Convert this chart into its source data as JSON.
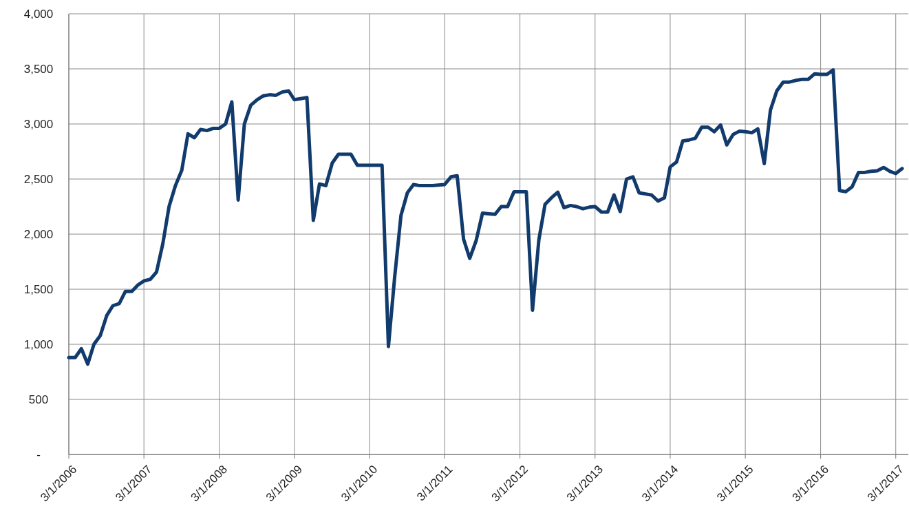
{
  "chart_data": {
    "type": "line",
    "x": [
      "2006-03",
      "2006-04",
      "2006-05",
      "2006-06",
      "2006-07",
      "2006-08",
      "2006-09",
      "2006-10",
      "2006-11",
      "2006-12",
      "2007-01",
      "2007-02",
      "2007-03",
      "2007-04",
      "2007-05",
      "2007-06",
      "2007-07",
      "2007-08",
      "2007-09",
      "2007-10",
      "2007-11",
      "2007-12",
      "2008-01",
      "2008-02",
      "2008-03",
      "2008-04",
      "2008-05",
      "2008-06",
      "2008-07",
      "2008-08",
      "2008-09",
      "2008-10",
      "2008-11",
      "2008-12",
      "2009-01",
      "2009-02",
      "2009-03",
      "2009-04",
      "2009-05",
      "2009-06",
      "2009-07",
      "2009-08",
      "2009-09",
      "2009-10",
      "2009-11",
      "2009-12",
      "2010-01",
      "2010-02",
      "2010-03",
      "2010-04",
      "2010-05",
      "2010-06",
      "2010-07",
      "2010-08",
      "2010-09",
      "2010-10",
      "2010-11",
      "2010-12",
      "2011-01",
      "2011-02",
      "2011-03",
      "2011-04",
      "2011-05",
      "2011-06",
      "2011-07",
      "2011-08",
      "2011-09",
      "2011-10",
      "2011-11",
      "2011-12",
      "2012-01",
      "2012-02",
      "2012-03",
      "2012-04",
      "2012-05",
      "2012-06",
      "2012-07",
      "2012-08",
      "2012-09",
      "2012-10",
      "2012-11",
      "2012-12",
      "2013-01",
      "2013-02",
      "2013-03",
      "2013-04",
      "2013-05",
      "2013-06",
      "2013-07",
      "2013-08",
      "2013-09",
      "2013-10",
      "2013-11",
      "2013-12",
      "2014-01",
      "2014-02",
      "2014-03",
      "2014-04",
      "2014-05",
      "2014-06",
      "2014-07",
      "2014-08",
      "2014-09",
      "2014-10",
      "2014-11",
      "2014-12",
      "2015-01",
      "2015-02",
      "2015-03",
      "2015-04",
      "2015-05",
      "2015-06",
      "2015-07",
      "2015-08",
      "2015-09",
      "2015-10",
      "2015-11",
      "2015-12",
      "2016-01",
      "2016-02",
      "2016-03",
      "2016-04",
      "2016-05",
      "2016-06",
      "2016-07",
      "2016-08",
      "2016-09",
      "2016-10",
      "2016-11",
      "2016-12",
      "2017-01",
      "2017-02",
      "2017-03",
      "2017-04"
    ],
    "series": [
      {
        "color": "#123b6d",
        "values": [
          880,
          880,
          960,
          820,
          1000,
          1080,
          1260,
          1350,
          1370,
          1480,
          1480,
          1540,
          1575,
          1590,
          1655,
          1915,
          2250,
          2440,
          2580,
          2910,
          2875,
          2950,
          2940,
          2960,
          2960,
          3000,
          3200,
          2310,
          3000,
          3170,
          3220,
          3255,
          3265,
          3260,
          3290,
          3300,
          3220,
          3230,
          3240,
          2125,
          2455,
          2440,
          2645,
          2725,
          2725,
          2725,
          2625,
          2625,
          2625,
          2625,
          2625,
          980,
          1605,
          2170,
          2375,
          2450,
          2440,
          2440,
          2440,
          2445,
          2450,
          2520,
          2530,
          1955,
          1780,
          1940,
          2190,
          2185,
          2180,
          2250,
          2250,
          2385,
          2385,
          2385,
          1310,
          1950,
          2270,
          2330,
          2380,
          2240,
          2260,
          2250,
          2230,
          2245,
          2250,
          2200,
          2200,
          2355,
          2205,
          2500,
          2520,
          2375,
          2365,
          2355,
          2300,
          2330,
          2610,
          2655,
          2845,
          2855,
          2870,
          2970,
          2970,
          2930,
          2990,
          2810,
          2905,
          2935,
          2930,
          2920,
          2955,
          2640,
          3125,
          3300,
          3380,
          3380,
          3395,
          3405,
          3405,
          3455,
          3450,
          3450,
          3490,
          2395,
          2385,
          2430,
          2560,
          2560,
          2570,
          2575,
          2605,
          2570,
          2550,
          2595
        ]
      }
    ],
    "xlim": [
      "2006-03-01",
      "2017-05-01"
    ],
    "xticks": [
      {
        "value": "2006-03-01",
        "label": "3/1/2006"
      },
      {
        "value": "2007-03-01",
        "label": "3/1/2007"
      },
      {
        "value": "2008-03-01",
        "label": "3/1/2008"
      },
      {
        "value": "2009-03-01",
        "label": "3/1/2009"
      },
      {
        "value": "2010-03-01",
        "label": "3/1/2010"
      },
      {
        "value": "2011-03-01",
        "label": "3/1/2011"
      },
      {
        "value": "2012-03-01",
        "label": "3/1/2012"
      },
      {
        "value": "2013-03-01",
        "label": "3/1/2013"
      },
      {
        "value": "2014-03-01",
        "label": "3/1/2014"
      },
      {
        "value": "2015-03-01",
        "label": "3/1/2015"
      },
      {
        "value": "2016-03-01",
        "label": "3/1/2016"
      },
      {
        "value": "2017-03-01",
        "label": "3/1/2017"
      }
    ],
    "ylim": [
      0,
      4000
    ],
    "yticks": [
      {
        "value": 0,
        "label": "-"
      },
      {
        "value": 500,
        "label": "500"
      },
      {
        "value": 1000,
        "label": "1,000"
      },
      {
        "value": 1500,
        "label": "1,500"
      },
      {
        "value": 2000,
        "label": "2,000"
      },
      {
        "value": 2500,
        "label": "2,500"
      },
      {
        "value": 3000,
        "label": "3,000"
      },
      {
        "value": 3500,
        "label": "3,500"
      },
      {
        "value": 4000,
        "label": "4,000"
      }
    ],
    "grid": true,
    "marker": "none",
    "line_style": "solid"
  }
}
